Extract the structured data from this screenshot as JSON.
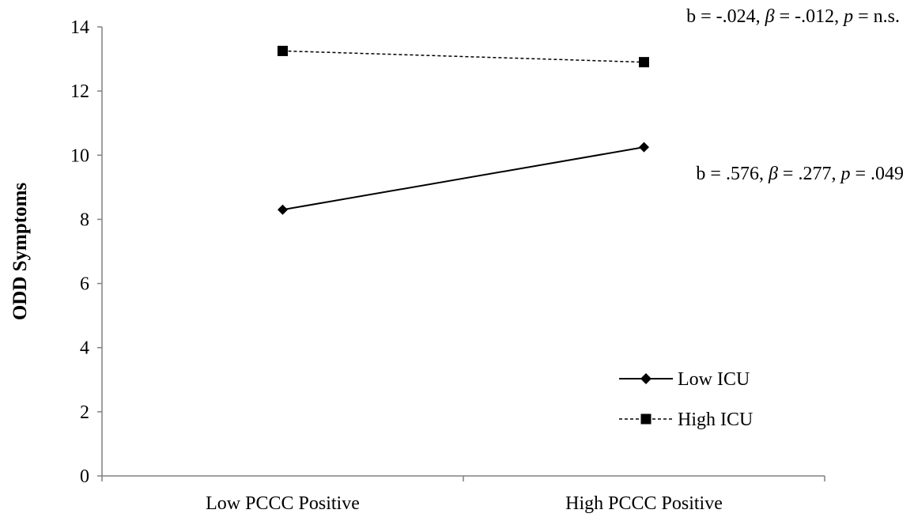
{
  "chart_data": {
    "type": "line",
    "ylabel": "ODD Symptoms",
    "xlabel": "",
    "categories": [
      "Low PCCC Positive",
      "High PCCC Positive"
    ],
    "ylim": [
      0,
      14
    ],
    "yticks": [
      0,
      2,
      4,
      6,
      8,
      10,
      12,
      14
    ],
    "grid": false,
    "legend_position": "bottom-right",
    "series": [
      {
        "name": "Low ICU",
        "values": [
          8.3,
          10.25
        ],
        "line_style": "solid",
        "marker": "diamond",
        "color": "#000000",
        "annotation": {
          "prefix": "b = .576, ",
          "beta_symbol": "β",
          "mid": " = .277,  ",
          "p_symbol": "p",
          "suffix": " = .049"
        }
      },
      {
        "name": "High ICU",
        "values": [
          13.25,
          12.9
        ],
        "line_style": "dashed",
        "marker": "square",
        "color": "#000000",
        "annotation": {
          "prefix": "b = -.024, ",
          "beta_symbol": "β",
          "mid": " = -.012, ",
          "p_symbol": "p",
          "suffix": " = n.s."
        }
      }
    ]
  }
}
